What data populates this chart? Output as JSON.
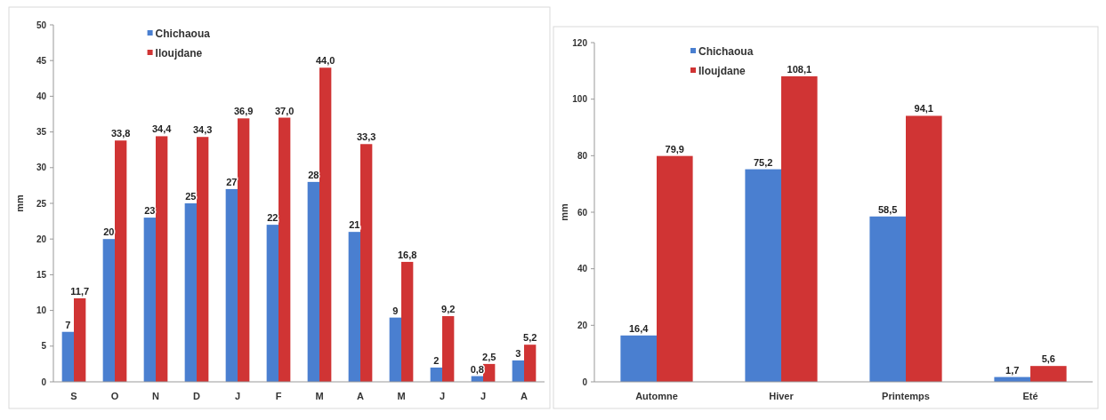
{
  "chart_data": [
    {
      "type": "bar",
      "ylabel": "mm",
      "categories": [
        "S",
        "O",
        "N",
        "D",
        "J",
        "F",
        "M",
        "A",
        "M",
        "J",
        "J",
        "A"
      ],
      "ylim": [
        0,
        50
      ],
      "yticks": [
        0,
        5,
        10,
        15,
        20,
        25,
        30,
        35,
        40,
        45,
        50
      ],
      "legend": "top left",
      "grid": false,
      "data_labels": true,
      "series": [
        {
          "name": "Chichaoua",
          "color": "#4a7fd0",
          "values": [
            7,
            20,
            23,
            25,
            27,
            22,
            28,
            21,
            9,
            2,
            0.8,
            3
          ],
          "value_labels": [
            "7",
            "20",
            "23",
            "25",
            "27",
            "22",
            "28",
            "21",
            "9",
            "2",
            "0,8",
            "3"
          ]
        },
        {
          "name": "Iloujdane",
          "color": "#d03434",
          "values": [
            11.7,
            33.8,
            34.4,
            34.3,
            36.9,
            37.0,
            44.0,
            33.3,
            16.8,
            9.2,
            2.5,
            5.2
          ],
          "value_labels": [
            "11,7",
            "33,8",
            "34,4",
            "34,3",
            "36,9",
            "37,0",
            "44,0",
            "33,3",
            "16,8",
            "9,2",
            "2,5",
            "5,2"
          ]
        }
      ]
    },
    {
      "type": "bar",
      "ylabel": "mm",
      "categories": [
        "Automne",
        "Hiver",
        "Printemps",
        "Eté"
      ],
      "ylim": [
        0,
        120
      ],
      "yticks": [
        0,
        20,
        40,
        60,
        80,
        100,
        120
      ],
      "legend": "top left",
      "grid": false,
      "data_labels": true,
      "series": [
        {
          "name": "Chichaoua",
          "color": "#4a7fd0",
          "values": [
            16.4,
            75.2,
            58.5,
            1.7
          ],
          "value_labels": [
            "16,4",
            "75,2",
            "58,5",
            "1,7"
          ]
        },
        {
          "name": "Iloujdane",
          "color": "#d03434",
          "values": [
            79.9,
            108.1,
            94.1,
            5.6
          ],
          "value_labels": [
            "79,9",
            "108,1",
            "94,1",
            "5,6"
          ]
        }
      ]
    }
  ]
}
